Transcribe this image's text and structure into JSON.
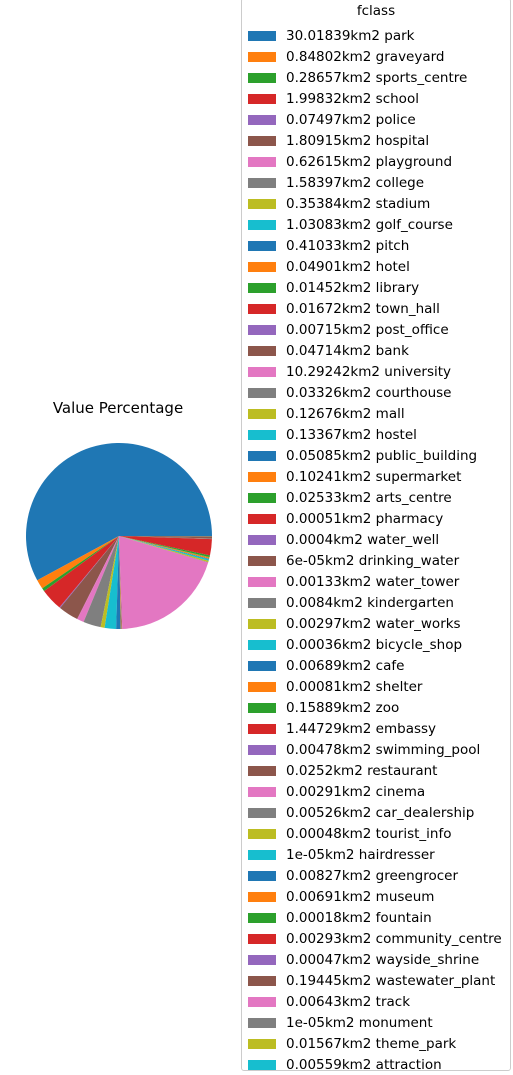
{
  "chart_data": {
    "type": "pie",
    "title": "Value Percentage",
    "legend_title": "fclass",
    "legend_position": "right",
    "start_angle_deg": 0,
    "direction": "counterclockwise",
    "slices": [
      {
        "label": "30.01839km2 park",
        "value": 30.01839,
        "color": "#1f77b4"
      },
      {
        "label": "0.84802km2 graveyard",
        "value": 0.84802,
        "color": "#ff7f0e"
      },
      {
        "label": "0.28657km2 sports_centre",
        "value": 0.28657,
        "color": "#2ca02c"
      },
      {
        "label": "1.99832km2 school",
        "value": 1.99832,
        "color": "#d62728"
      },
      {
        "label": "0.07497km2 police",
        "value": 0.07497,
        "color": "#9467bd"
      },
      {
        "label": "1.80915km2 hospital",
        "value": 1.80915,
        "color": "#8c564b"
      },
      {
        "label": "0.62615km2 playground",
        "value": 0.62615,
        "color": "#e377c2"
      },
      {
        "label": "1.58397km2 college",
        "value": 1.58397,
        "color": "#7f7f7f"
      },
      {
        "label": "0.35384km2 stadium",
        "value": 0.35384,
        "color": "#bcbd22"
      },
      {
        "label": "1.03083km2 golf_course",
        "value": 1.03083,
        "color": "#17becf"
      },
      {
        "label": "0.41033km2 pitch",
        "value": 0.41033,
        "color": "#1f77b4"
      },
      {
        "label": "0.04901km2 hotel",
        "value": 0.04901,
        "color": "#ff7f0e"
      },
      {
        "label": "0.01452km2 library",
        "value": 0.01452,
        "color": "#2ca02c"
      },
      {
        "label": "0.01672km2 town_hall",
        "value": 0.01672,
        "color": "#d62728"
      },
      {
        "label": "0.00715km2 post_office",
        "value": 0.00715,
        "color": "#9467bd"
      },
      {
        "label": "0.04714km2 bank",
        "value": 0.04714,
        "color": "#8c564b"
      },
      {
        "label": "10.29242km2 university",
        "value": 10.29242,
        "color": "#e377c2"
      },
      {
        "label": "0.03326km2 courthouse",
        "value": 0.03326,
        "color": "#7f7f7f"
      },
      {
        "label": "0.12676km2 mall",
        "value": 0.12676,
        "color": "#bcbd22"
      },
      {
        "label": "0.13367km2 hostel",
        "value": 0.13367,
        "color": "#17becf"
      },
      {
        "label": "0.05085km2 public_building",
        "value": 0.05085,
        "color": "#1f77b4"
      },
      {
        "label": "0.10241km2 supermarket",
        "value": 0.10241,
        "color": "#ff7f0e"
      },
      {
        "label": "0.02533km2 arts_centre",
        "value": 0.02533,
        "color": "#2ca02c"
      },
      {
        "label": "0.00051km2 pharmacy",
        "value": 0.00051,
        "color": "#d62728"
      },
      {
        "label": "0.0004km2 water_well",
        "value": 0.0004,
        "color": "#9467bd"
      },
      {
        "label": "6e-05km2 drinking_water",
        "value": 6e-05,
        "color": "#8c564b"
      },
      {
        "label": "0.00133km2 water_tower",
        "value": 0.00133,
        "color": "#e377c2"
      },
      {
        "label": "0.0084km2 kindergarten",
        "value": 0.0084,
        "color": "#7f7f7f"
      },
      {
        "label": "0.00297km2 water_works",
        "value": 0.00297,
        "color": "#bcbd22"
      },
      {
        "label": "0.00036km2 bicycle_shop",
        "value": 0.00036,
        "color": "#17becf"
      },
      {
        "label": "0.00689km2 cafe",
        "value": 0.00689,
        "color": "#1f77b4"
      },
      {
        "label": "0.00081km2 shelter",
        "value": 0.00081,
        "color": "#ff7f0e"
      },
      {
        "label": "0.15889km2 zoo",
        "value": 0.15889,
        "color": "#2ca02c"
      },
      {
        "label": "1.44729km2 embassy",
        "value": 1.44729,
        "color": "#d62728"
      },
      {
        "label": "0.00478km2 swimming_pool",
        "value": 0.00478,
        "color": "#9467bd"
      },
      {
        "label": "0.0252km2 restaurant",
        "value": 0.0252,
        "color": "#8c564b"
      },
      {
        "label": "0.00291km2 cinema",
        "value": 0.00291,
        "color": "#e377c2"
      },
      {
        "label": "0.00526km2 car_dealership",
        "value": 0.00526,
        "color": "#7f7f7f"
      },
      {
        "label": "0.00048km2 tourist_info",
        "value": 0.00048,
        "color": "#bcbd22"
      },
      {
        "label": "1e-05km2 hairdresser",
        "value": 1e-05,
        "color": "#17becf"
      },
      {
        "label": "0.00827km2 greengrocer",
        "value": 0.00827,
        "color": "#1f77b4"
      },
      {
        "label": "0.00691km2 museum",
        "value": 0.00691,
        "color": "#ff7f0e"
      },
      {
        "label": "0.00018km2 fountain",
        "value": 0.00018,
        "color": "#2ca02c"
      },
      {
        "label": "0.00293km2 community_centre",
        "value": 0.00293,
        "color": "#d62728"
      },
      {
        "label": "0.00047km2 wayside_shrine",
        "value": 0.00047,
        "color": "#9467bd"
      },
      {
        "label": "0.19445km2 wastewater_plant",
        "value": 0.19445,
        "color": "#8c564b"
      },
      {
        "label": "0.00643km2 track",
        "value": 0.00643,
        "color": "#e377c2"
      },
      {
        "label": "1e-05km2 monument",
        "value": 1e-05,
        "color": "#7f7f7f"
      },
      {
        "label": "0.01567km2 theme_park",
        "value": 0.01567,
        "color": "#bcbd22"
      },
      {
        "label": "0.00559km2 attraction",
        "value": 0.00559,
        "color": "#17becf"
      }
    ]
  }
}
